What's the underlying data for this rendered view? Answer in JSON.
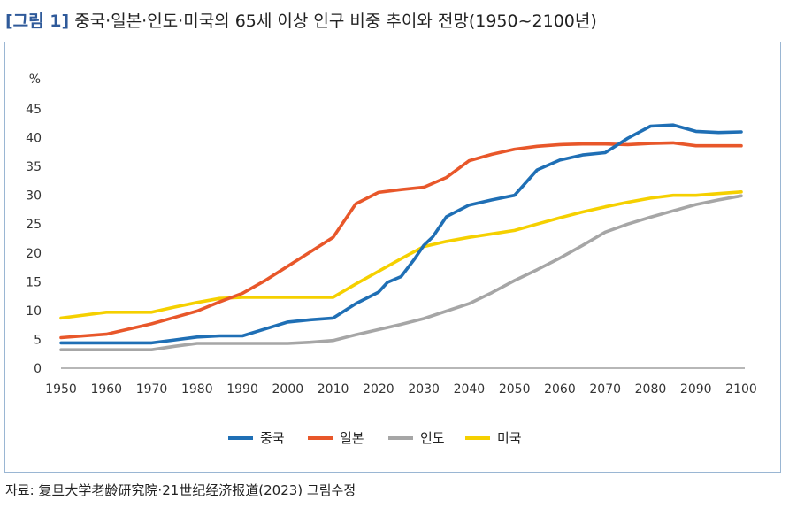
{
  "figure": {
    "tag": "[그림 1]",
    "title": "중국·일본·인도·미국의 65세 이상 인구 비중 추이와 전망(1950~2100년)",
    "source": "자료: 复旦大学老龄研究院·21世纪经济报道(2023) 그림수정"
  },
  "chart_data": {
    "type": "line",
    "unit_label": "%",
    "ylim": [
      0,
      45
    ],
    "yticks": [
      "0",
      "5",
      "10",
      "15",
      "20",
      "25",
      "30",
      "35",
      "40",
      "45"
    ],
    "xlim": [
      1950,
      2100
    ],
    "xticks": [
      "1950",
      "1960",
      "1970",
      "1980",
      "1990",
      "2000",
      "2010",
      "2020",
      "2030",
      "2040",
      "2050",
      "2060",
      "2070",
      "2080",
      "2090",
      "2100"
    ],
    "grid": false,
    "legend_position": "bottom",
    "colors": {
      "중국": "#1f6fb5",
      "일본": "#e8572a",
      "인도": "#a6a6a6",
      "미국": "#f5d000"
    },
    "series": [
      {
        "name": "중국",
        "color": "#1f6fb5",
        "x": [
          1950,
          1955,
          1960,
          1965,
          1970,
          1975,
          1980,
          1985,
          1990,
          1995,
          2000,
          2005,
          2010,
          2015,
          2020,
          2022,
          2025,
          2028,
          2030,
          2032,
          2035,
          2040,
          2045,
          2050,
          2055,
          2060,
          2065,
          2070,
          2075,
          2080,
          2085,
          2090,
          2095,
          2100
        ],
        "y": [
          4.4,
          4.4,
          4.4,
          4.4,
          4.4,
          4.9,
          5.4,
          5.6,
          5.6,
          6.8,
          8.0,
          8.4,
          8.7,
          11.2,
          13.2,
          14.9,
          15.9,
          19.0,
          21.3,
          22.8,
          26.3,
          28.3,
          29.2,
          30.0,
          34.4,
          36.1,
          37.0,
          37.4,
          39.9,
          42.0,
          42.2,
          41.1,
          40.9,
          41.0
        ]
      },
      {
        "name": "일본",
        "color": "#e8572a",
        "x": [
          1950,
          1955,
          1960,
          1965,
          1970,
          1975,
          1980,
          1985,
          1990,
          1995,
          2000,
          2005,
          2010,
          2015,
          2020,
          2025,
          2030,
          2035,
          2040,
          2045,
          2050,
          2055,
          2060,
          2065,
          2070,
          2075,
          2080,
          2085,
          2090,
          2095,
          2100
        ],
        "y": [
          5.3,
          5.6,
          5.9,
          6.8,
          7.7,
          8.8,
          9.9,
          11.5,
          13.0,
          15.2,
          17.7,
          20.2,
          22.7,
          28.5,
          30.5,
          31.0,
          31.4,
          33.1,
          36.0,
          37.1,
          38.0,
          38.5,
          38.8,
          38.9,
          38.9,
          38.8,
          39.0,
          39.1,
          38.6,
          38.6,
          38.6
        ]
      },
      {
        "name": "인도",
        "color": "#a6a6a6",
        "x": [
          1950,
          1960,
          1970,
          1975,
          1980,
          1990,
          2000,
          2005,
          2010,
          2015,
          2020,
          2025,
          2030,
          2035,
          2040,
          2045,
          2050,
          2055,
          2060,
          2065,
          2070,
          2075,
          2080,
          2085,
          2090,
          2095,
          2100
        ],
        "y": [
          3.2,
          3.2,
          3.2,
          3.8,
          4.3,
          4.3,
          4.3,
          4.5,
          4.8,
          5.8,
          6.7,
          7.6,
          8.6,
          9.9,
          11.2,
          13.1,
          15.2,
          17.1,
          19.1,
          21.3,
          23.6,
          25.0,
          26.2,
          27.3,
          28.4,
          29.2,
          29.9
        ]
      },
      {
        "name": "미국",
        "color": "#f5d000",
        "x": [
          1950,
          1955,
          1960,
          1965,
          1970,
          1975,
          1980,
          1985,
          1990,
          1995,
          2000,
          2005,
          2010,
          2015,
          2020,
          2025,
          2030,
          2035,
          2040,
          2045,
          2050,
          2055,
          2060,
          2065,
          2070,
          2075,
          2080,
          2085,
          2090,
          2095,
          2100
        ],
        "y": [
          8.7,
          9.2,
          9.7,
          9.7,
          9.7,
          10.6,
          11.4,
          12.1,
          12.3,
          12.3,
          12.3,
          12.3,
          12.3,
          14.6,
          16.8,
          19.0,
          21.1,
          22.0,
          22.7,
          23.3,
          23.9,
          25.0,
          26.1,
          27.1,
          28.0,
          28.8,
          29.5,
          30.0,
          30.0,
          30.3,
          30.6
        ]
      }
    ]
  }
}
